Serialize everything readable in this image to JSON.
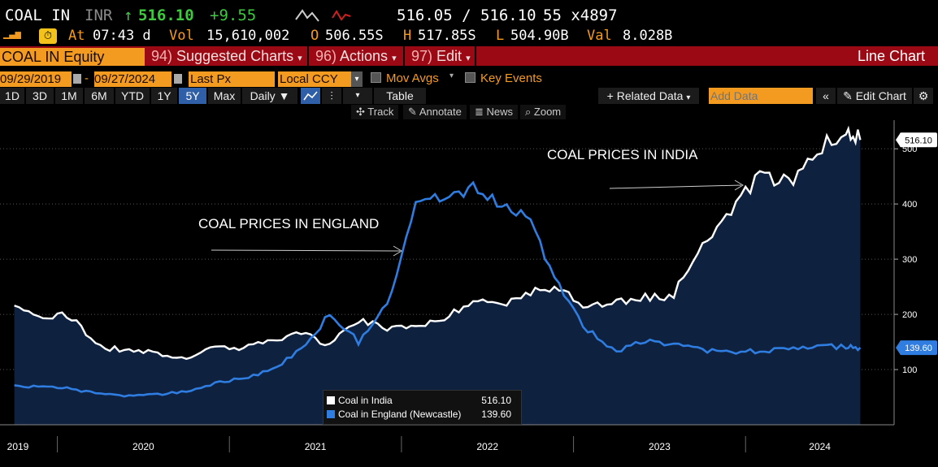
{
  "ticker": {
    "symbol": "COAL IN",
    "currency": "INR",
    "arrow": "↑",
    "last": "516.10",
    "change": "+9.55",
    "bid_ask": "516.05 / 516.10",
    "size": "55 x4897",
    "at_label": "At",
    "time": "07:43 d",
    "vol_label": "Vol",
    "volume": "15,610,002",
    "open_label": "O",
    "open": "506.55S",
    "high_label": "H",
    "high": "517.85S",
    "low_label": "L",
    "low": "504.90B",
    "val_label": "Val",
    "value": "8.028B"
  },
  "menu": {
    "security": "COAL IN Equity",
    "tabs": [
      {
        "num": "94)",
        "label": "Suggested Charts"
      },
      {
        "num": "96)",
        "label": "Actions"
      },
      {
        "num": "97)",
        "label": "Edit"
      }
    ],
    "chart_type": "Line Chart"
  },
  "controls": {
    "start_date": "09/29/2019",
    "end_date": "09/27/2024",
    "field": "Last Px",
    "currency": "Local CCY",
    "mov_avgs": "Mov Avgs",
    "key_events": "Key Events",
    "periods": [
      "1D",
      "3D",
      "1M",
      "6M",
      "YTD",
      "1Y",
      "5Y",
      "Max"
    ],
    "active_period": "5Y",
    "frequency": "Daily",
    "table": "Table",
    "related_data": "+ Related Data",
    "add_data_placeholder": "Add Data",
    "edit_chart": "Edit Chart",
    "tools": [
      "Track",
      "Annotate",
      "News",
      "Zoom"
    ]
  },
  "colors": {
    "accent_orange": "#f39a20",
    "menu_red": "#9b0a14",
    "india_line": "#ffffff",
    "england_line": "#2f7de1",
    "area_fill": "#0e2240"
  },
  "chart_data": {
    "type": "line",
    "x": [
      "2019-10",
      "2019-12",
      "2020-02",
      "2020-04",
      "2020-06",
      "2020-08",
      "2020-10",
      "2020-12",
      "2021-02",
      "2021-04",
      "2021-06",
      "2021-08",
      "2021-10",
      "2021-12",
      "2022-02",
      "2022-04",
      "2022-06",
      "2022-08",
      "2022-10",
      "2022-12",
      "2023-02",
      "2023-04",
      "2023-06",
      "2023-08",
      "2023-10",
      "2023-12",
      "2024-02",
      "2024-04",
      "2024-06",
      "2024-08",
      "2024-09"
    ],
    "series": [
      {
        "name": "Coal in India",
        "last": "516.10",
        "values": [
          210,
          200,
          195,
          140,
          135,
          130,
          120,
          140,
          140,
          150,
          165,
          145,
          190,
          175,
          180,
          195,
          225,
          220,
          240,
          245,
          215,
          220,
          230,
          235,
          330,
          390,
          450,
          440,
          500,
          520,
          516
        ]
      },
      {
        "name": "Coal in England (Newcastle)",
        "last": "139.60",
        "values": [
          70,
          68,
          65,
          55,
          52,
          55,
          60,
          75,
          85,
          100,
          135,
          200,
          150,
          220,
          400,
          410,
          430,
          390,
          370,
          250,
          170,
          135,
          150,
          145,
          135,
          130,
          135,
          135,
          145,
          140,
          139.6
        ]
      }
    ],
    "ylim": [
      0,
      540
    ],
    "yticks": [
      100,
      200,
      300,
      400,
      500
    ],
    "xticks": [
      "2019",
      "2020",
      "2021",
      "2022",
      "2023",
      "2024"
    ],
    "annotations": [
      "COAL PRICES IN ENGLAND",
      "COAL PRICES IN INDIA"
    ],
    "legend_position": "bottom-center"
  }
}
